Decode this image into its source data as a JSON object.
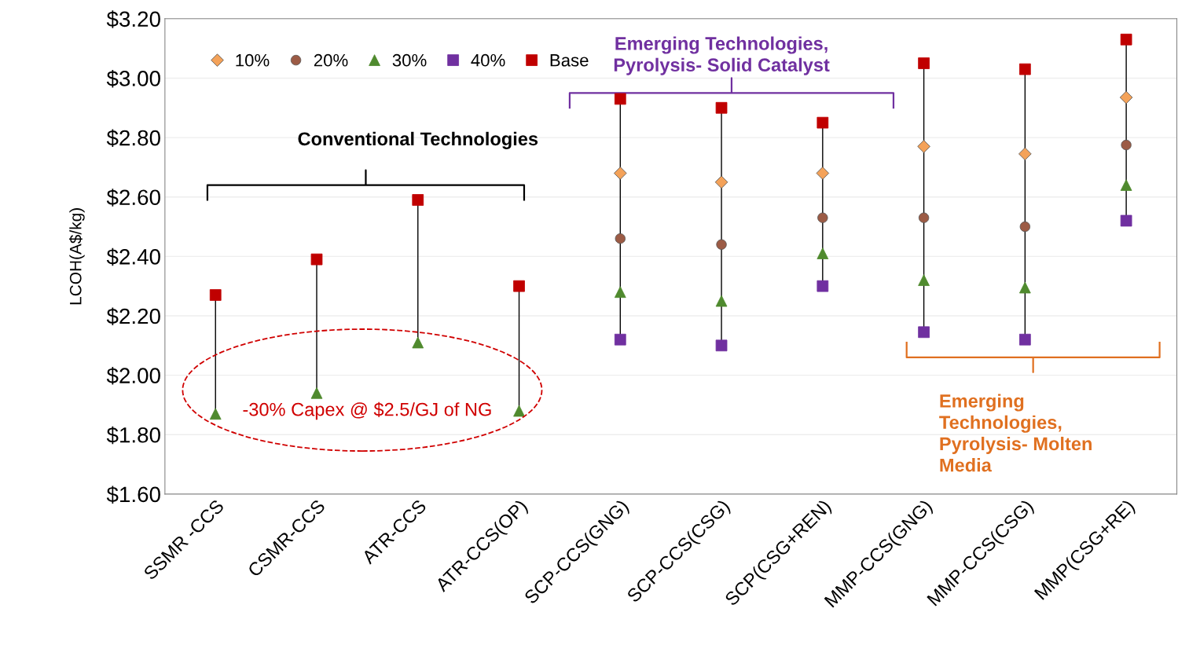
{
  "chart_data": {
    "type": "scatter",
    "ylabel": "LCOH(A$/kg)",
    "categories": [
      "SSMR -CCS",
      "CSMR-CCS",
      "ATR-CCS",
      "ATR-CCS(OP)",
      "SCP-CCS(GNG)",
      "SCP-CCS(CSG)",
      "SCP(CSG+REN)",
      "MMP-CCS(GNG)",
      "MMP-CCS(CSG)",
      "MMP(CSG+RE)"
    ],
    "series": [
      {
        "name": "10%",
        "color": "#f4a259",
        "marker": "diamond",
        "values": [
          null,
          null,
          null,
          null,
          2.68,
          2.65,
          2.68,
          2.77,
          2.745,
          2.935
        ]
      },
      {
        "name": "20%",
        "color": "#9c5b45",
        "marker": "circle",
        "values": [
          null,
          null,
          null,
          null,
          2.46,
          2.44,
          2.53,
          2.53,
          2.5,
          2.775
        ]
      },
      {
        "name": "30%",
        "color": "#4f8a2e",
        "marker": "triangle",
        "values": [
          1.87,
          1.94,
          2.11,
          1.88,
          2.28,
          2.25,
          2.41,
          2.32,
          2.295,
          2.64
        ]
      },
      {
        "name": "40%",
        "color": "#7030a0",
        "marker": "square",
        "values": [
          null,
          null,
          null,
          null,
          2.12,
          2.1,
          2.3,
          2.145,
          2.12,
          2.52
        ]
      },
      {
        "name": "Base",
        "color": "#c00000",
        "marker": "square",
        "values": [
          2.27,
          2.39,
          2.59,
          2.3,
          2.93,
          2.9,
          2.85,
          3.05,
          3.03,
          3.13
        ]
      }
    ],
    "ylim": [
      1.6,
      3.2
    ],
    "yticks": [
      {
        "value": 1.6,
        "label": "$1.60"
      },
      {
        "value": 1.8,
        "label": "$1.80"
      },
      {
        "value": 2.0,
        "label": "$2.00"
      },
      {
        "value": 2.2,
        "label": "$2.20"
      },
      {
        "value": 2.4,
        "label": "$2.40"
      },
      {
        "value": 2.6,
        "label": "$2.60"
      },
      {
        "value": 2.8,
        "label": "$2.80"
      },
      {
        "value": 3.0,
        "label": "$3.00"
      },
      {
        "value": 3.2,
        "label": "$3.20"
      }
    ],
    "grid": "y",
    "legend": "top left",
    "annotations": [
      "Conventional Technologies",
      "Emerging Technologies,\nPyrolysis- Solid Catalyst",
      "Emerging\nTechnologies,\nPyrolysis- Molten\nMedia",
      "-30% Capex @ $2.5/GJ of NG"
    ]
  }
}
